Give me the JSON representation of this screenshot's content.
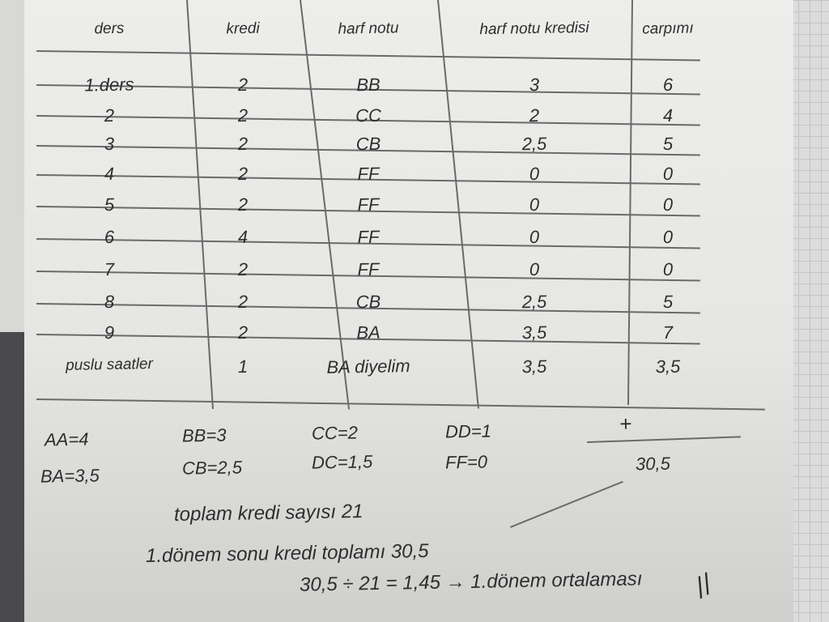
{
  "table": {
    "headers": [
      "ders",
      "kredi",
      "harf notu",
      "harf notu kredisi",
      "carpımı"
    ],
    "rows": [
      [
        "1.ders",
        "2",
        "BB",
        "3",
        "6"
      ],
      [
        "2",
        "2",
        "CC",
        "2",
        "4"
      ],
      [
        "3",
        "2",
        "CB",
        "2,5",
        "5"
      ],
      [
        "4",
        "2",
        "FF",
        "0",
        "0"
      ],
      [
        "5",
        "2",
        "FF",
        "0",
        "0"
      ],
      [
        "6",
        "4",
        "FF",
        "0",
        "0"
      ],
      [
        "7",
        "2",
        "FF",
        "0",
        "0"
      ],
      [
        "8",
        "2",
        "CB",
        "2,5",
        "5"
      ],
      [
        "9",
        "2",
        "BA",
        "3,5",
        "7"
      ],
      [
        "puslu saatler",
        "1",
        "BA diyelim",
        "3,5",
        "3,5"
      ]
    ]
  },
  "grade_scale": [
    "AA=4",
    "BB=3",
    "CC=2",
    "DD=1",
    "BA=3,5",
    "CB=2,5",
    "DC=1,5",
    "FF=0"
  ],
  "sum": {
    "plus": "+",
    "total": "30,5"
  },
  "notes": [
    "toplam kredi sayısı 21",
    "1.dönem sonu kredi toplamı 30,5",
    "30,5 ÷ 21 = 1,45 → 1.dönem ortalaması",
    "//"
  ]
}
